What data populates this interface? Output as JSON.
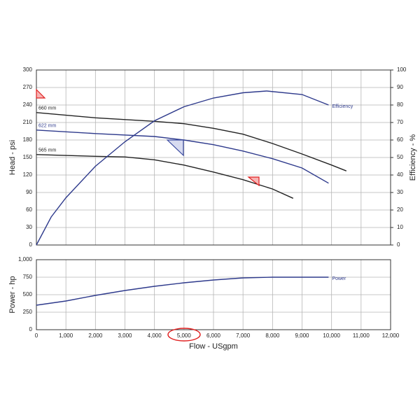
{
  "chart_data": [
    {
      "type": "line",
      "y_label": "Head - psi",
      "y2_label": "Efficiency - %",
      "xlim": [
        0,
        12000
      ],
      "xticks": [
        0,
        1000,
        2000,
        3000,
        4000,
        5000,
        6000,
        7000,
        8000,
        9000,
        10000,
        11000,
        12000
      ],
      "ylim": [
        0,
        300
      ],
      "yticks": [
        0,
        30,
        60,
        90,
        120,
        150,
        180,
        210,
        240,
        270,
        300
      ],
      "y2lim": [
        0,
        100
      ],
      "y2ticks": [
        0,
        10,
        20,
        30,
        40,
        50,
        60,
        70,
        80,
        90,
        100
      ],
      "grid": true,
      "series": [
        {
          "name": "660 mm",
          "color": "#222222",
          "x": [
            0,
            2000,
            4000,
            5000,
            6000,
            7000,
            8000,
            9000,
            10000,
            10500
          ],
          "values": [
            227,
            218,
            212,
            208,
            200,
            190,
            174,
            156,
            137,
            127
          ]
        },
        {
          "name": "622 mm",
          "color": "#2e3a8c",
          "x": [
            0,
            2000,
            4000,
            5000,
            6000,
            7000,
            8000,
            9000,
            9900
          ],
          "values": [
            197,
            191,
            186,
            180,
            172,
            161,
            148,
            132,
            106
          ]
        },
        {
          "name": "565 mm",
          "color": "#222222",
          "x": [
            0,
            2000,
            3000,
            4000,
            5000,
            6000,
            7000,
            8000,
            8700
          ],
          "values": [
            155,
            152,
            151,
            146,
            137,
            125,
            112,
            96,
            80
          ]
        },
        {
          "name": "Efficiency",
          "color": "#2e3a8c",
          "axis": "y2",
          "x": [
            0,
            500,
            1000,
            2000,
            3000,
            4000,
            5000,
            6000,
            7000,
            7800,
            9000,
            9900
          ],
          "values": [
            0,
            16,
            27,
            45,
            59,
            71,
            79,
            84,
            87,
            88,
            86,
            80
          ]
        }
      ]
    },
    {
      "type": "line",
      "y_label": "Power - hp",
      "x_label": "Flow - USgpm",
      "xlim": [
        0,
        12000
      ],
      "xticks": [
        0,
        {
          "value": 1000,
          "label": "1,000"
        },
        {
          "value": 2000,
          "label": "2,000"
        },
        {
          "value": 3000,
          "label": "3,000"
        },
        {
          "value": 4000,
          "label": "4,000"
        },
        {
          "value": 5000,
          "label": "5,000"
        },
        {
          "value": 6000,
          "label": "6,000"
        },
        {
          "value": 7000,
          "label": "7,000"
        },
        {
          "value": 8000,
          "label": "8,000"
        },
        {
          "value": 9000,
          "label": "9,000"
        },
        {
          "value": 10000,
          "label": "10,000"
        },
        {
          "value": 11000,
          "label": "11,000"
        },
        {
          "value": 12000,
          "label": "12,000"
        }
      ],
      "ylim": [
        0,
        1000
      ],
      "yticks": [
        0,
        250,
        500,
        750,
        {
          "value": 1000,
          "label": "1,000"
        }
      ],
      "grid": true,
      "series": [
        {
          "name": "Power",
          "color": "#2e3a8c",
          "x": [
            0,
            1000,
            2000,
            3000,
            4000,
            5000,
            6000,
            7000,
            8000,
            9000,
            9900
          ],
          "values": [
            350,
            410,
            490,
            560,
            620,
            670,
            710,
            740,
            750,
            750,
            750
          ]
        }
      ]
    }
  ]
}
